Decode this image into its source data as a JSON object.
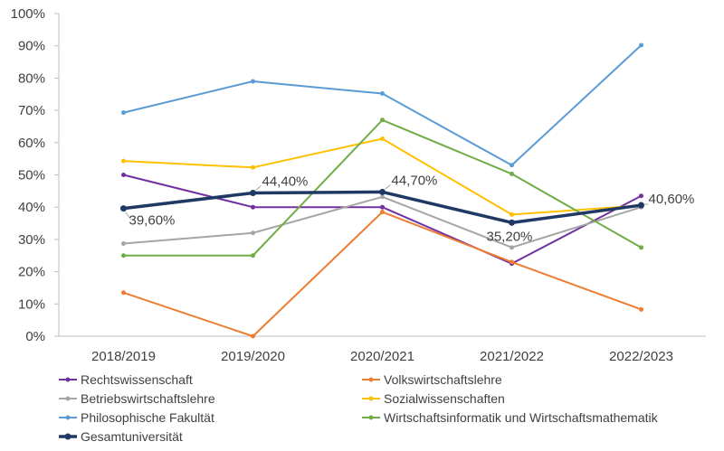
{
  "chart_data": {
    "type": "line",
    "categories": [
      "2018/2019",
      "2019/2020",
      "2020/2021",
      "2021/2022",
      "2022/2023"
    ],
    "ylim": [
      0,
      100
    ],
    "y_ticks": [
      "0%",
      "10%",
      "20%",
      "30%",
      "40%",
      "50%",
      "60%",
      "70%",
      "80%",
      "90%",
      "100%"
    ],
    "grid": false,
    "legend_position": "bottom",
    "series": [
      {
        "name": "Rechtswissenschaft",
        "color": "#7030A0",
        "values": [
          50,
          40,
          40,
          22.5,
          43.5
        ]
      },
      {
        "name": "Volkswirtschaftslehre",
        "color": "#ED7D31",
        "values": [
          13.5,
          0,
          38.5,
          23,
          8.3
        ]
      },
      {
        "name": "Betriebswirtschaftslehre",
        "color": "#A5A5A5",
        "values": [
          28.7,
          32,
          43.2,
          27.5,
          40
        ]
      },
      {
        "name": "Sozialwissenschaften",
        "color": "#FFC000",
        "values": [
          54.3,
          52.3,
          61.2,
          37.7,
          40.5
        ]
      },
      {
        "name": "Philosophische Fakultät",
        "color": "#5B9BD5",
        "values": [
          69.3,
          79,
          75.2,
          53,
          90.2
        ]
      },
      {
        "name": "Wirtschaftsinformatik und Wirtschaftsmathematik",
        "color": "#70AD47",
        "values": [
          25,
          25,
          67,
          50.3,
          27.5
        ]
      },
      {
        "name": "Gesamtuniversität",
        "color": "#203864",
        "values": [
          39.6,
          44.4,
          44.7,
          35.2,
          40.6
        ],
        "labels": [
          "39,60%",
          "44,40%",
          "44,70%",
          "35,20%",
          "40,60%"
        ]
      }
    ]
  }
}
